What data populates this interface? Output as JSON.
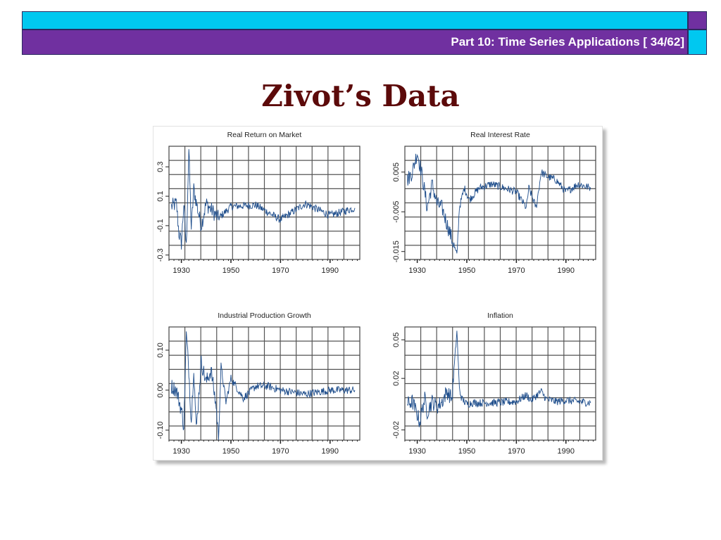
{
  "header": {
    "text": "Part 10: Time Series Applications [ 34/62]"
  },
  "slide": {
    "title": "Zivot’s Data"
  },
  "colors": {
    "cyan_bar": "#00c8f0",
    "purple_bar": "#7030a0",
    "title": "#5c0a0a",
    "series": "#1f4e8c"
  },
  "chart_data": [
    {
      "type": "line",
      "title": "Real Return on Market",
      "x_ticks": [
        1930,
        1950,
        1970,
        1990
      ],
      "y_ticks": [
        0.3,
        0.1,
        -0.1,
        -0.3
      ],
      "y_tick_labels": [
        "0.3",
        "0.1",
        "-0.1",
        "-0.3"
      ],
      "xlim": [
        1925,
        2002
      ],
      "ylim": [
        -0.33,
        0.44
      ],
      "grid": true,
      "series": [
        {
          "x": [
            1926,
            1928,
            1929,
            1930,
            1931,
            1932,
            1933,
            1934,
            1935,
            1936,
            1938,
            1940,
            1945,
            1950,
            1960,
            1970,
            1980,
            1990,
            2000
          ],
          "values": [
            0.03,
            0.05,
            -0.15,
            -0.22,
            0.05,
            -0.25,
            0.42,
            -0.12,
            0.15,
            0.06,
            -0.1,
            0.05,
            -0.05,
            0.03,
            0.04,
            -0.06,
            0.05,
            -0.03,
            0.02
          ]
        }
      ]
    },
    {
      "type": "line",
      "title": "Real Interest Rate",
      "x_ticks": [
        1930,
        1950,
        1970,
        1990
      ],
      "y_ticks": [
        0.005,
        -0.005,
        -0.015
      ],
      "y_tick_labels": [
        "0.005",
        "-0.005",
        "-0.015"
      ],
      "xlim": [
        1925,
        2002
      ],
      "ylim": [
        -0.017,
        0.0115
      ],
      "grid": true,
      "series": [
        {
          "x": [
            1926,
            1928,
            1930,
            1932,
            1934,
            1936,
            1938,
            1940,
            1942,
            1944,
            1946,
            1947,
            1949,
            1951,
            1955,
            1960,
            1965,
            1970,
            1974,
            1975,
            1978,
            1980,
            1982,
            1986,
            1990,
            1995,
            2000
          ],
          "values": [
            0.003,
            0.005,
            0.01,
            0.004,
            -0.004,
            0.002,
            -0.003,
            -0.004,
            -0.008,
            -0.012,
            -0.016,
            -0.004,
            0.001,
            -0.002,
            0.001,
            0.002,
            0.001,
            0.0,
            -0.004,
            0.001,
            -0.004,
            0.005,
            0.004,
            0.003,
            0.0,
            0.002,
            0.001
          ]
        }
      ]
    },
    {
      "type": "line",
      "title": "Industrial Production Growth",
      "x_ticks": [
        1930,
        1950,
        1970,
        1990
      ],
      "y_ticks": [
        0.1,
        0.0,
        -0.1
      ],
      "y_tick_labels": [
        "0.10",
        "0.00",
        "-0.10"
      ],
      "xlim": [
        1925,
        2002
      ],
      "ylim": [
        -0.125,
        0.158
      ],
      "grid": true,
      "series": [
        {
          "x": [
            1926,
            1928,
            1930,
            1931,
            1932,
            1933,
            1934,
            1935,
            1936,
            1938,
            1940,
            1942,
            1944,
            1945,
            1946,
            1948,
            1950,
            1955,
            1960,
            1965,
            1970,
            1980,
            1990,
            2000
          ],
          "values": [
            0.01,
            0.0,
            -0.05,
            -0.09,
            0.14,
            0.05,
            -0.08,
            0.06,
            -0.1,
            0.07,
            0.02,
            0.05,
            -0.04,
            -0.12,
            0.06,
            -0.03,
            0.03,
            -0.02,
            0.01,
            0.01,
            0.0,
            -0.01,
            0.0,
            0.0
          ]
        }
      ]
    },
    {
      "type": "line",
      "title": "Inflation",
      "x_ticks": [
        1930,
        1950,
        1970,
        1990
      ],
      "y_ticks": [
        0.05,
        0.02,
        -0.02
      ],
      "y_tick_labels": [
        "0.05",
        "0.02",
        "-0.02"
      ],
      "xlim": [
        1925,
        2002
      ],
      "ylim": [
        -0.028,
        0.06
      ],
      "grid": true,
      "series": [
        {
          "x": [
            1926,
            1928,
            1930,
            1931,
            1932,
            1933,
            1934,
            1936,
            1938,
            1940,
            1942,
            1944,
            1946,
            1947,
            1948,
            1950,
            1952,
            1960,
            1970,
            1974,
            1976,
            1980,
            1982,
            1986,
            1990,
            2000
          ],
          "values": [
            0.0,
            0.002,
            -0.008,
            -0.014,
            -0.004,
            0.004,
            -0.006,
            0.002,
            -0.002,
            0.002,
            0.01,
            0.004,
            0.057,
            0.012,
            0.004,
            0.0,
            0.001,
            0.001,
            0.002,
            0.007,
            0.003,
            0.01,
            0.004,
            0.002,
            0.003,
            0.001
          ]
        }
      ]
    }
  ]
}
